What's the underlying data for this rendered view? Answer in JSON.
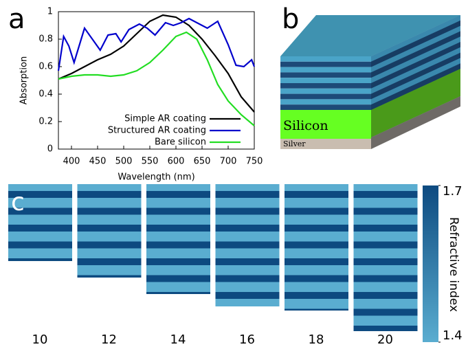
{
  "chart_data": {
    "type": "line",
    "xlabel": "Wavelength (nm)",
    "ylabel": "Absorption",
    "xlim": [
      375,
      750
    ],
    "xticks": [
      400,
      450,
      500,
      550,
      600,
      650,
      700,
      750
    ],
    "ylim": [
      0,
      1
    ],
    "yticks": [
      0,
      0.2,
      0.4,
      0.6,
      0.8,
      1
    ],
    "legend": "lower right",
    "series": [
      {
        "name": "Simple AR coating",
        "color": "#000000",
        "x": [
          375,
          400,
          425,
          450,
          475,
          500,
          525,
          550,
          575,
          600,
          625,
          650,
          675,
          700,
          725,
          750
        ],
        "values": [
          0.51,
          0.55,
          0.6,
          0.65,
          0.69,
          0.75,
          0.84,
          0.93,
          0.975,
          0.96,
          0.9,
          0.8,
          0.68,
          0.55,
          0.38,
          0.27
        ]
      },
      {
        "name": "Structured AR coating",
        "color": "#0000cc",
        "x": [
          375,
          385,
          395,
          405,
          425,
          440,
          455,
          470,
          485,
          495,
          510,
          530,
          545,
          560,
          580,
          595,
          610,
          625,
          640,
          660,
          680,
          700,
          715,
          730,
          745,
          750
        ],
        "values": [
          0.57,
          0.82,
          0.75,
          0.63,
          0.88,
          0.8,
          0.72,
          0.83,
          0.84,
          0.78,
          0.87,
          0.91,
          0.88,
          0.83,
          0.92,
          0.9,
          0.92,
          0.95,
          0.92,
          0.88,
          0.93,
          0.76,
          0.61,
          0.6,
          0.65,
          0.6
        ]
      },
      {
        "name": "Bare silicon",
        "color": "#22dd22",
        "x": [
          375,
          400,
          425,
          450,
          475,
          500,
          525,
          550,
          575,
          600,
          620,
          640,
          660,
          680,
          700,
          725,
          750
        ],
        "values": [
          0.51,
          0.53,
          0.54,
          0.54,
          0.53,
          0.54,
          0.57,
          0.63,
          0.72,
          0.82,
          0.85,
          0.8,
          0.65,
          0.47,
          0.35,
          0.25,
          0.17
        ]
      }
    ]
  },
  "panel_labels": {
    "a": "a",
    "b": "b",
    "c": "c"
  },
  "diagram": {
    "silicon": "Silicon",
    "silver": "Silver"
  },
  "stacks": {
    "labels": [
      "10",
      "12",
      "14",
      "16",
      "18",
      "20"
    ]
  },
  "colorbar": {
    "label": "Refractive index",
    "lim": [
      1.4,
      1.7
    ],
    "ticks": [
      1.4,
      1.7
    ],
    "colors": [
      "#5aadd0",
      "#0d4a80"
    ]
  }
}
